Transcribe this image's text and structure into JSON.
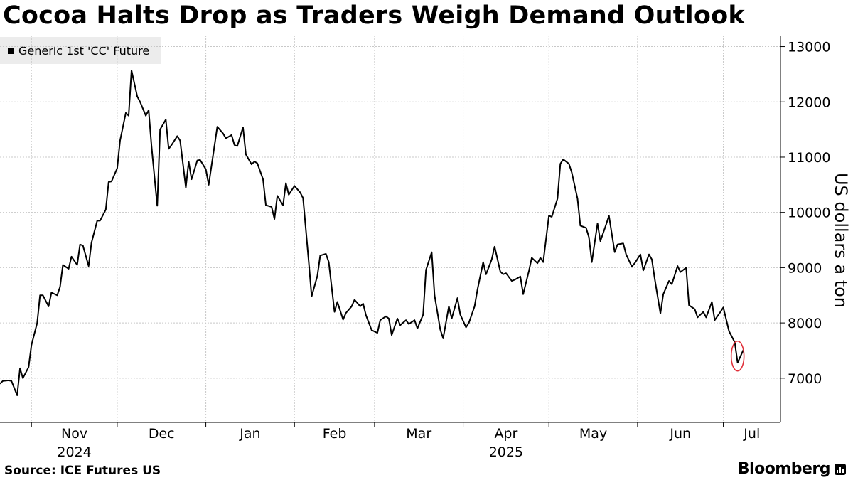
{
  "title": "Cocoa Halts Drop as Traders Weigh Demand Outlook",
  "source": "Source: ICE Futures US",
  "brand": "Bloomberg",
  "colors": {
    "line": "#000000",
    "grid": "#c8c8c8",
    "highlight": "#e0303a",
    "legend_bg": "#ececec"
  },
  "chart_data": {
    "type": "line",
    "title": "Cocoa Halts Drop as Traders Weigh Demand Outlook",
    "ylabel": "US dollars a ton",
    "ylim": [
      6200,
      13200
    ],
    "yticks": [
      7000,
      8000,
      9000,
      10000,
      11000,
      12000,
      13000
    ],
    "x_start": "2024-10-21",
    "x_end": "2025-07-21",
    "month_ticks": [
      {
        "date": "2024-11-01",
        "label": "Nov",
        "year": "2024"
      },
      {
        "date": "2024-12-01",
        "label": "Dec",
        "year": ""
      },
      {
        "date": "2025-01-01",
        "label": "Jan",
        "year": ""
      },
      {
        "date": "2025-02-01",
        "label": "Feb",
        "year": ""
      },
      {
        "date": "2025-03-01",
        "label": "Mar",
        "year": ""
      },
      {
        "date": "2025-04-01",
        "label": "Apr",
        "year": "2025"
      },
      {
        "date": "2025-05-01",
        "label": "May",
        "year": ""
      },
      {
        "date": "2025-06-01",
        "label": "Jun",
        "year": ""
      },
      {
        "date": "2025-07-01",
        "label": "Jul",
        "year": ""
      }
    ],
    "series": [
      {
        "name": "Generic 1st 'CC' Future",
        "points": [
          [
            "2024-10-21",
            6900
          ],
          [
            "2024-10-22",
            6950
          ],
          [
            "2024-10-24",
            6960
          ],
          [
            "2024-10-25",
            6950
          ],
          [
            "2024-10-27",
            6690
          ],
          [
            "2024-10-28",
            7180
          ],
          [
            "2024-10-29",
            7000
          ],
          [
            "2024-10-31",
            7200
          ],
          [
            "2024-11-01",
            7600
          ],
          [
            "2024-11-03",
            8000
          ],
          [
            "2024-11-04",
            8500
          ],
          [
            "2024-11-05",
            8500
          ],
          [
            "2024-11-07",
            8300
          ],
          [
            "2024-11-08",
            8550
          ],
          [
            "2024-11-10",
            8500
          ],
          [
            "2024-11-11",
            8650
          ],
          [
            "2024-11-12",
            9050
          ],
          [
            "2024-11-14",
            8980
          ],
          [
            "2024-11-15",
            9200
          ],
          [
            "2024-11-17",
            9050
          ],
          [
            "2024-11-18",
            9420
          ],
          [
            "2024-11-19",
            9400
          ],
          [
            "2024-11-21",
            9030
          ],
          [
            "2024-11-22",
            9450
          ],
          [
            "2024-11-24",
            9850
          ],
          [
            "2024-11-25",
            9850
          ],
          [
            "2024-11-27",
            10050
          ],
          [
            "2024-11-28",
            10550
          ],
          [
            "2024-11-29",
            10560
          ],
          [
            "2024-12-01",
            10800
          ],
          [
            "2024-12-02",
            11300
          ],
          [
            "2024-12-04",
            11800
          ],
          [
            "2024-12-05",
            11750
          ],
          [
            "2024-12-06",
            12570
          ],
          [
            "2024-12-08",
            12100
          ],
          [
            "2024-12-09",
            12000
          ],
          [
            "2024-12-11",
            11750
          ],
          [
            "2024-12-12",
            11850
          ],
          [
            "2024-12-13",
            11200
          ],
          [
            "2024-12-15",
            10120
          ],
          [
            "2024-12-16",
            11500
          ],
          [
            "2024-12-18",
            11680
          ],
          [
            "2024-12-19",
            11150
          ],
          [
            "2024-12-20",
            11220
          ],
          [
            "2024-12-22",
            11380
          ],
          [
            "2024-12-23",
            11300
          ],
          [
            "2024-12-25",
            10450
          ],
          [
            "2024-12-26",
            10920
          ],
          [
            "2024-12-27",
            10600
          ],
          [
            "2024-12-29",
            10940
          ],
          [
            "2024-12-30",
            10950
          ],
          [
            "2025-01-01",
            10780
          ],
          [
            "2025-01-02",
            10500
          ],
          [
            "2025-01-04",
            11200
          ],
          [
            "2025-01-05",
            11550
          ],
          [
            "2025-01-07",
            11430
          ],
          [
            "2025-01-08",
            11340
          ],
          [
            "2025-01-10",
            11400
          ],
          [
            "2025-01-11",
            11220
          ],
          [
            "2025-01-12",
            11200
          ],
          [
            "2025-01-14",
            11540
          ],
          [
            "2025-01-15",
            11050
          ],
          [
            "2025-01-17",
            10870
          ],
          [
            "2025-01-18",
            10920
          ],
          [
            "2025-01-19",
            10890
          ],
          [
            "2025-01-21",
            10600
          ],
          [
            "2025-01-22",
            10130
          ],
          [
            "2025-01-24",
            10100
          ],
          [
            "2025-01-25",
            9880
          ],
          [
            "2025-01-26",
            10300
          ],
          [
            "2025-01-28",
            10130
          ],
          [
            "2025-01-29",
            10530
          ],
          [
            "2025-01-30",
            10320
          ],
          [
            "2025-02-01",
            10480
          ],
          [
            "2025-02-03",
            10360
          ],
          [
            "2025-02-04",
            10260
          ],
          [
            "2025-02-06",
            9100
          ],
          [
            "2025-02-07",
            8480
          ],
          [
            "2025-02-09",
            8850
          ],
          [
            "2025-02-10",
            9220
          ],
          [
            "2025-02-12",
            9250
          ],
          [
            "2025-02-13",
            9100
          ],
          [
            "2025-02-15",
            8200
          ],
          [
            "2025-02-16",
            8380
          ],
          [
            "2025-02-18",
            8060
          ],
          [
            "2025-02-19",
            8180
          ],
          [
            "2025-02-21",
            8300
          ],
          [
            "2025-02-22",
            8420
          ],
          [
            "2025-02-24",
            8300
          ],
          [
            "2025-02-25",
            8350
          ],
          [
            "2025-02-26",
            8140
          ],
          [
            "2025-02-28",
            7870
          ],
          [
            "2025-03-02",
            7820
          ],
          [
            "2025-03-03",
            8050
          ],
          [
            "2025-03-05",
            8120
          ],
          [
            "2025-03-06",
            8080
          ],
          [
            "2025-03-07",
            7780
          ],
          [
            "2025-03-09",
            8080
          ],
          [
            "2025-03-10",
            7960
          ],
          [
            "2025-03-12",
            8050
          ],
          [
            "2025-03-13",
            7980
          ],
          [
            "2025-03-15",
            8050
          ],
          [
            "2025-03-16",
            7900
          ],
          [
            "2025-03-18",
            8150
          ],
          [
            "2025-03-19",
            8960
          ],
          [
            "2025-03-21",
            9280
          ],
          [
            "2025-03-22",
            8500
          ],
          [
            "2025-03-24",
            7880
          ],
          [
            "2025-03-25",
            7720
          ],
          [
            "2025-03-27",
            8300
          ],
          [
            "2025-03-28",
            8080
          ],
          [
            "2025-03-30",
            8450
          ],
          [
            "2025-03-31",
            8150
          ],
          [
            "2025-04-02",
            7920
          ],
          [
            "2025-04-03",
            8000
          ],
          [
            "2025-04-05",
            8300
          ],
          [
            "2025-04-06",
            8600
          ],
          [
            "2025-04-08",
            9100
          ],
          [
            "2025-04-09",
            8880
          ],
          [
            "2025-04-11",
            9150
          ],
          [
            "2025-04-12",
            9380
          ],
          [
            "2025-04-14",
            8930
          ],
          [
            "2025-04-15",
            8880
          ],
          [
            "2025-04-16",
            8900
          ],
          [
            "2025-04-18",
            8760
          ],
          [
            "2025-04-19",
            8780
          ],
          [
            "2025-04-21",
            8840
          ],
          [
            "2025-04-22",
            8520
          ],
          [
            "2025-04-24",
            8940
          ],
          [
            "2025-04-25",
            9180
          ],
          [
            "2025-04-27",
            9080
          ],
          [
            "2025-04-28",
            9180
          ],
          [
            "2025-04-29",
            9100
          ],
          [
            "2025-05-01",
            9940
          ],
          [
            "2025-05-02",
            9920
          ],
          [
            "2025-05-04",
            10250
          ],
          [
            "2025-05-05",
            10880
          ],
          [
            "2025-05-06",
            10960
          ],
          [
            "2025-05-08",
            10880
          ],
          [
            "2025-05-09",
            10720
          ],
          [
            "2025-05-11",
            10250
          ],
          [
            "2025-05-12",
            9760
          ],
          [
            "2025-05-14",
            9720
          ],
          [
            "2025-05-15",
            9550
          ],
          [
            "2025-05-16",
            9100
          ],
          [
            "2025-05-18",
            9800
          ],
          [
            "2025-05-19",
            9480
          ],
          [
            "2025-05-21",
            9780
          ],
          [
            "2025-05-22",
            9940
          ],
          [
            "2025-05-24",
            9280
          ],
          [
            "2025-05-25",
            9420
          ],
          [
            "2025-05-27",
            9440
          ],
          [
            "2025-05-28",
            9240
          ],
          [
            "2025-05-30",
            9020
          ],
          [
            "2025-05-31",
            9080
          ],
          [
            "2025-06-02",
            9240
          ],
          [
            "2025-06-03",
            8950
          ],
          [
            "2025-06-05",
            9240
          ],
          [
            "2025-06-06",
            9150
          ],
          [
            "2025-06-07",
            8800
          ],
          [
            "2025-06-09",
            8170
          ],
          [
            "2025-06-10",
            8520
          ],
          [
            "2025-06-12",
            8760
          ],
          [
            "2025-06-13",
            8700
          ],
          [
            "2025-06-15",
            9030
          ],
          [
            "2025-06-16",
            8920
          ],
          [
            "2025-06-18",
            9000
          ],
          [
            "2025-06-19",
            8320
          ],
          [
            "2025-06-21",
            8250
          ],
          [
            "2025-06-22",
            8100
          ],
          [
            "2025-06-24",
            8200
          ],
          [
            "2025-06-25",
            8100
          ],
          [
            "2025-06-27",
            8380
          ],
          [
            "2025-06-28",
            8050
          ],
          [
            "2025-06-30",
            8200
          ],
          [
            "2025-07-01",
            8280
          ],
          [
            "2025-07-03",
            7850
          ],
          [
            "2025-07-05",
            7650
          ],
          [
            "2025-07-06",
            7280
          ],
          [
            "2025-07-08",
            7510
          ]
        ]
      }
    ],
    "annotations": [
      {
        "type": "circle",
        "date": "2025-07-06",
        "value": 7400,
        "color": "#e0303a"
      }
    ]
  }
}
